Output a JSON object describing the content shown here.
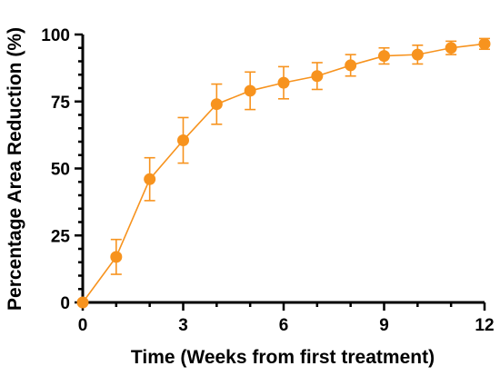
{
  "chart_data": {
    "type": "line",
    "title": "",
    "xlabel": "Time (Weeks from first treatment)",
    "ylabel": "Percentage Area Reduction (%)",
    "xlim": [
      0,
      12
    ],
    "ylim": [
      0,
      100
    ],
    "x_ticks": [
      "0",
      "3",
      "6",
      "9",
      "12"
    ],
    "y_ticks": [
      "0",
      "25",
      "50",
      "75",
      "100"
    ],
    "grid": false,
    "color": "#F7931E",
    "series": [
      {
        "x": [
          0,
          1,
          2,
          3,
          4,
          5,
          6,
          7,
          8,
          9,
          10,
          11,
          12
        ],
        "y": [
          0,
          17,
          46,
          60.5,
          74,
          79,
          82,
          84.5,
          88.5,
          92,
          92.5,
          95,
          96.5
        ],
        "error": [
          0,
          6.5,
          8,
          8.5,
          7.5,
          7,
          6,
          5,
          4,
          3,
          3.5,
          2.5,
          2
        ]
      }
    ]
  }
}
